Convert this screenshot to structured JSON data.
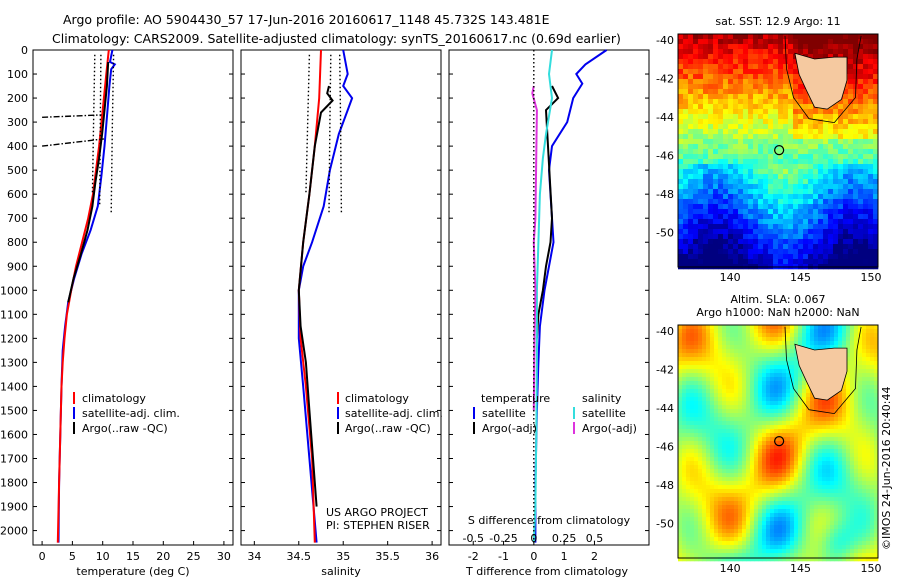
{
  "header": {
    "line1": "Argo profile: AO 5904430_57 17-Jun-2016 20160617_1148 45.732S 143.481E",
    "line2": "Climatology: CARS2009. Satellite-adjusted climatology: synTS_20160617.nc (0.69d earlier)"
  },
  "colors": {
    "climatology": "#ff0000",
    "satellite": "#0000ee",
    "argo": "#000000",
    "satellite_diff": "#33dddd",
    "argo_salinity_diff": "#dd33dd"
  },
  "legend": {
    "climatology": "climatology",
    "satellite": "satellite-adj. clim.",
    "argo": "Argo(..raw -QC)",
    "temperature_head": "temperature",
    "salinity_head": "salinity",
    "sat_short": "satellite",
    "argo_adj": "Argo(-adj)"
  },
  "credit": {
    "line1": "US ARGO PROJECT",
    "line2": "PI: STEPHEN RISER"
  },
  "map1": {
    "title": "sat. SST: 12.9 Argo: 11"
  },
  "map2": {
    "title1": "Altim. SLA: 0.067",
    "title2": "Argo h1000: NaN h2000: NaN"
  },
  "footer": {
    "stamp": "©IMOS 24-Jun-2016 20:40:44"
  },
  "chart_data": [
    {
      "type": "line",
      "panel": "temperature",
      "xlabel": "temperature (deg C)",
      "ylabel": "",
      "xlim": [
        -1.5,
        31.5
      ],
      "ylim": [
        2060,
        0
      ],
      "xticks": [
        0,
        5,
        10,
        15,
        20,
        25,
        30
      ],
      "yticks": [
        0,
        100,
        200,
        300,
        400,
        500,
        600,
        700,
        800,
        900,
        1000,
        1100,
        1200,
        1300,
        1400,
        1500,
        1600,
        1700,
        1800,
        1900,
        2000
      ],
      "series": [
        {
          "name": "satellite-adj. clim.",
          "color": "#0000ee",
          "style": "solid",
          "points": [
            [
              11.6,
              0
            ],
            [
              11.2,
              50
            ],
            [
              12.0,
              60
            ],
            [
              11.4,
              80
            ],
            [
              11.1,
              150
            ],
            [
              10.8,
              250
            ],
            [
              10.3,
              400
            ],
            [
              9.8,
              520
            ],
            [
              9.2,
              650
            ],
            [
              8.0,
              750
            ],
            [
              6.5,
              850
            ],
            [
              5.3,
              950
            ],
            [
              4.3,
              1050
            ],
            [
              3.8,
              1150
            ],
            [
              3.4,
              1250
            ],
            [
              3.2,
              1400
            ],
            [
              3.0,
              1600
            ],
            [
              2.8,
              1800
            ],
            [
              2.7,
              2050
            ]
          ]
        },
        {
          "name": "climatology",
          "color": "#ff0000",
          "style": "solid",
          "points": [
            [
              11.0,
              0
            ],
            [
              10.6,
              100
            ],
            [
              10.2,
              200
            ],
            [
              9.8,
              300
            ],
            [
              9.4,
              400
            ],
            [
              8.9,
              500
            ],
            [
              8.4,
              600
            ],
            [
              7.6,
              700
            ],
            [
              6.6,
              800
            ],
            [
              5.6,
              900
            ],
            [
              4.8,
              1000
            ],
            [
              4.1,
              1100
            ],
            [
              3.7,
              1200
            ],
            [
              3.4,
              1300
            ],
            [
              3.2,
              1400
            ],
            [
              3.0,
              1600
            ],
            [
              2.8,
              1800
            ],
            [
              2.6,
              2050
            ]
          ]
        },
        {
          "name": "Argo(..raw -QC)",
          "color": "#000000",
          "style": "solid",
          "points": [
            [
              10.9,
              50
            ],
            [
              10.7,
              150
            ],
            [
              10.3,
              250
            ],
            [
              9.9,
              350
            ],
            [
              9.4,
              450
            ],
            [
              8.8,
              550
            ],
            [
              8.3,
              650
            ],
            [
              7.5,
              750
            ],
            [
              6.4,
              850
            ],
            [
              5.2,
              950
            ],
            [
              4.3,
              1050
            ]
          ]
        },
        {
          "name": "",
          "color": "#000000",
          "style": "dashdot",
          "points": [
            [
              0,
              280
            ],
            [
              9.8,
              270
            ]
          ]
        },
        {
          "name": "",
          "color": "#000000",
          "style": "dashdot",
          "points": [
            [
              0,
              400
            ],
            [
              10.2,
              370
            ]
          ]
        },
        {
          "name": "",
          "color": "#000000",
          "style": "dotted",
          "points": [
            [
              8.7,
              20
            ],
            [
              8.5,
              300
            ],
            [
              8.3,
              600
            ]
          ]
        },
        {
          "name": "",
          "color": "#000000",
          "style": "dotted",
          "points": [
            [
              9.7,
              20
            ],
            [
              9.6,
              300
            ],
            [
              9.5,
              650
            ]
          ]
        },
        {
          "name": "",
          "color": "#000000",
          "style": "dotted",
          "points": [
            [
              11.8,
              20
            ],
            [
              11.6,
              300
            ],
            [
              11.4,
              680
            ]
          ]
        }
      ]
    },
    {
      "type": "line",
      "panel": "salinity",
      "xlabel": "salinity",
      "ylabel": "",
      "xlim": [
        33.85,
        36.1
      ],
      "ylim": [
        2060,
        0
      ],
      "xticks": [
        34,
        34.5,
        35,
        35.5,
        36
      ],
      "series": [
        {
          "name": "satellite-adj. clim.",
          "color": "#0000ee",
          "style": "solid",
          "points": [
            [
              35.0,
              0
            ],
            [
              35.05,
              100
            ],
            [
              35.0,
              150
            ],
            [
              35.1,
              200
            ],
            [
              35.05,
              250
            ],
            [
              34.95,
              350
            ],
            [
              34.85,
              500
            ],
            [
              34.78,
              650
            ],
            [
              34.65,
              800
            ],
            [
              34.55,
              900
            ],
            [
              34.5,
              1000
            ],
            [
              34.5,
              1200
            ],
            [
              34.55,
              1400
            ],
            [
              34.62,
              1700
            ],
            [
              34.7,
              2050
            ]
          ]
        },
        {
          "name": "climatology",
          "color": "#ff0000",
          "style": "solid",
          "points": [
            [
              34.75,
              0
            ],
            [
              34.74,
              100
            ],
            [
              34.73,
              200
            ],
            [
              34.68,
              400
            ],
            [
              34.62,
              600
            ],
            [
              34.55,
              800
            ],
            [
              34.5,
              1000
            ],
            [
              34.52,
              1200
            ],
            [
              34.58,
              1400
            ],
            [
              34.65,
              1700
            ],
            [
              34.68,
              2050
            ]
          ]
        },
        {
          "name": "Argo(..raw -QC)",
          "color": "#000000",
          "style": "solid",
          "points": [
            [
              34.84,
              150
            ],
            [
              34.82,
              180
            ],
            [
              34.88,
              210
            ],
            [
              34.75,
              260
            ],
            [
              34.68,
              400
            ],
            [
              34.62,
              600
            ],
            [
              34.55,
              800
            ],
            [
              34.5,
              1000
            ],
            [
              34.52,
              1150
            ],
            [
              34.58,
              1300
            ],
            [
              34.62,
              1500
            ],
            [
              34.66,
              1700
            ],
            [
              34.7,
              1900
            ]
          ]
        },
        {
          "name": "",
          "color": "#000000",
          "style": "dotted",
          "points": [
            [
              34.62,
              20
            ],
            [
              34.6,
              300
            ],
            [
              34.58,
              600
            ]
          ]
        },
        {
          "name": "",
          "color": "#000000",
          "style": "dotted",
          "points": [
            [
              34.86,
              20
            ],
            [
              34.85,
              300
            ],
            [
              34.84,
              680
            ]
          ]
        },
        {
          "name": "",
          "color": "#000000",
          "style": "dotted",
          "points": [
            [
              34.96,
              20
            ],
            [
              34.97,
              300
            ],
            [
              34.98,
              680
            ]
          ]
        }
      ]
    },
    {
      "type": "line",
      "panel": "difference",
      "xlabel": "T difference from climatology",
      "top_label": "S difference from climatology",
      "xlim": [
        -2.8,
        3.8
      ],
      "ylim": [
        2060,
        0
      ],
      "xticks": [
        -2,
        -1,
        0,
        1,
        2
      ],
      "top_ticks": [
        "-0.5",
        "-0.25",
        "0",
        "0.25",
        "0.5"
      ],
      "series": [
        {
          "name": "satellite",
          "group": "temperature",
          "color": "#0000ee",
          "style": "solid",
          "points": [
            [
              2.4,
              0
            ],
            [
              1.7,
              60
            ],
            [
              1.4,
              100
            ],
            [
              1.6,
              140
            ],
            [
              1.3,
              200
            ],
            [
              1.1,
              300
            ],
            [
              0.6,
              400
            ],
            [
              0.5,
              500
            ],
            [
              0.55,
              600
            ],
            [
              0.6,
              700
            ],
            [
              0.65,
              800
            ],
            [
              0.5,
              900
            ],
            [
              0.35,
              1000
            ],
            [
              0.2,
              1150
            ],
            [
              0.15,
              1300
            ],
            [
              0.1,
              1500
            ],
            [
              0.05,
              1800
            ],
            [
              0.05,
              2050
            ]
          ]
        },
        {
          "name": "Argo(-adj)",
          "group": "temperature",
          "color": "#000000",
          "style": "solid",
          "points": [
            [
              0.6,
              150
            ],
            [
              0.8,
              200
            ],
            [
              0.4,
              250
            ],
            [
              0.6,
              700
            ],
            [
              0.55,
              800
            ],
            [
              0.4,
              900
            ],
            [
              0.3,
              1000
            ],
            [
              0.15,
              1100
            ],
            [
              0.1,
              1200
            ]
          ]
        },
        {
          "name": "satellite",
          "group": "salinity",
          "color": "#33dddd",
          "style": "solid",
          "points": [
            [
              0.6,
              0
            ],
            [
              0.5,
              100
            ],
            [
              0.6,
              200
            ],
            [
              0.4,
              350
            ],
            [
              0.3,
              450
            ],
            [
              0.2,
              600
            ],
            [
              0.15,
              800
            ],
            [
              0.1,
              1000
            ],
            [
              0.1,
              1300
            ],
            [
              0.08,
              1600
            ],
            [
              0.05,
              1900
            ],
            [
              0.0,
              2050
            ]
          ]
        },
        {
          "name": "Argo(-adj)",
          "group": "salinity",
          "color": "#dd33dd",
          "style": "solid",
          "points": [
            [
              0.0,
              150
            ],
            [
              -0.05,
              180
            ],
            [
              0.1,
              250
            ],
            [
              0.05,
              700
            ],
            [
              0.0,
              800
            ],
            [
              0.05,
              1000
            ],
            [
              0.02,
              1200
            ],
            [
              0.0,
              1500
            ]
          ]
        },
        {
          "name": "",
          "color": "#000000",
          "style": "dotted",
          "points": [
            [
              0,
              0
            ],
            [
              0,
              2050
            ]
          ]
        }
      ]
    },
    {
      "type": "heatmap",
      "panel": "sst_map",
      "xticks": [
        140,
        145,
        150
      ],
      "yticks": [
        -40,
        -42,
        -44,
        -46,
        -48,
        -50
      ],
      "float_position": [
        143.481,
        -45.732
      ]
    },
    {
      "type": "heatmap",
      "panel": "sla_map",
      "xticks": [
        140,
        145,
        150
      ],
      "yticks": [
        -40,
        -42,
        -44,
        -46,
        -48,
        -50
      ],
      "float_position": [
        143.481,
        -45.732
      ]
    }
  ]
}
